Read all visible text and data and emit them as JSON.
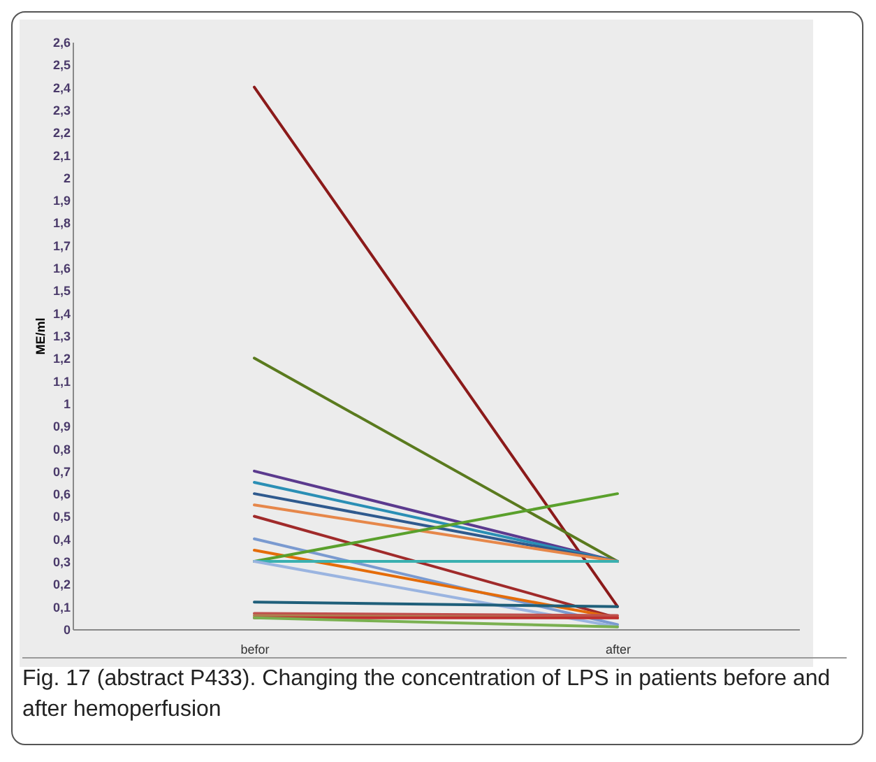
{
  "chart_data": {
    "type": "line",
    "ylabel": "ME/ml",
    "categories": [
      "befor",
      "after"
    ],
    "ylim": [
      0,
      2.6
    ],
    "yticks": [
      0,
      {
        "value": 0.1,
        "label": "0,1"
      },
      {
        "value": 0.2,
        "label": "0,2"
      },
      {
        "value": 0.3,
        "label": "0,3"
      },
      {
        "value": 0.4,
        "label": "0,4"
      },
      {
        "value": 0.5,
        "label": "0,5"
      },
      {
        "value": 0.6,
        "label": "0,6"
      },
      {
        "value": 0.7,
        "label": "0,7"
      },
      {
        "value": 0.8,
        "label": "0,8"
      },
      {
        "value": 0.9,
        "label": "0,9"
      },
      1,
      {
        "value": 1.1,
        "label": "1,1"
      },
      {
        "value": 1.2,
        "label": "1,2"
      },
      {
        "value": 1.3,
        "label": "1,3"
      },
      {
        "value": 1.4,
        "label": "1,4"
      },
      {
        "value": 1.5,
        "label": "1,5"
      },
      {
        "value": 1.6,
        "label": "1,6"
      },
      {
        "value": 1.7,
        "label": "1,7"
      },
      {
        "value": 1.8,
        "label": "1,8"
      },
      {
        "value": 1.9,
        "label": "1,9"
      },
      2,
      {
        "value": 2.1,
        "label": "2,1"
      },
      {
        "value": 2.2,
        "label": "2,2"
      },
      {
        "value": 2.3,
        "label": "2,3"
      },
      {
        "value": 2.4,
        "label": "2,4"
      },
      {
        "value": 2.5,
        "label": "2,5"
      },
      {
        "value": 2.6,
        "label": "2,6"
      }
    ],
    "grid": false,
    "legend": false,
    "marker": "none",
    "line_style": "solid",
    "series": [
      {
        "color": "#8b1a1a",
        "values": [
          2.4,
          0.1
        ]
      },
      {
        "color": "#5a7a1e",
        "values": [
          1.2,
          0.3
        ]
      },
      {
        "color": "#5b3a8e",
        "values": [
          0.7,
          0.3
        ]
      },
      {
        "color": "#2a8fb5",
        "values": [
          0.65,
          0.3
        ]
      },
      {
        "color": "#2f5a8e",
        "values": [
          0.6,
          0.3
        ]
      },
      {
        "color": "#e6874a",
        "values": [
          0.55,
          0.3
        ]
      },
      {
        "color": "#a02a2a",
        "values": [
          0.5,
          0.05
        ]
      },
      {
        "color": "#7a9ad0",
        "values": [
          0.4,
          0.02
        ]
      },
      {
        "color": "#e46c0a",
        "values": [
          0.35,
          0.05
        ]
      },
      {
        "color": "#5aa02c",
        "values": [
          0.3,
          0.6
        ]
      },
      {
        "color": "#3ab0b0",
        "values": [
          0.3,
          0.3
        ]
      },
      {
        "color": "#9ab4e0",
        "values": [
          0.3,
          0.01
        ]
      },
      {
        "color": "#1f5f7a",
        "values": [
          0.12,
          0.1
        ]
      },
      {
        "color": "#c0504d",
        "values": [
          0.07,
          0.06
        ]
      },
      {
        "color": "#b08050",
        "values": [
          0.06,
          0.05
        ]
      },
      {
        "color": "#c03030",
        "values": [
          0.05,
          0.05
        ]
      },
      {
        "color": "#7ab050",
        "values": [
          0.05,
          0.01
        ]
      }
    ],
    "annotations": [
      "Fig. 17 (abstract P433). Changing the concentration of LPS in patients before and after hemoperfusion"
    ]
  }
}
